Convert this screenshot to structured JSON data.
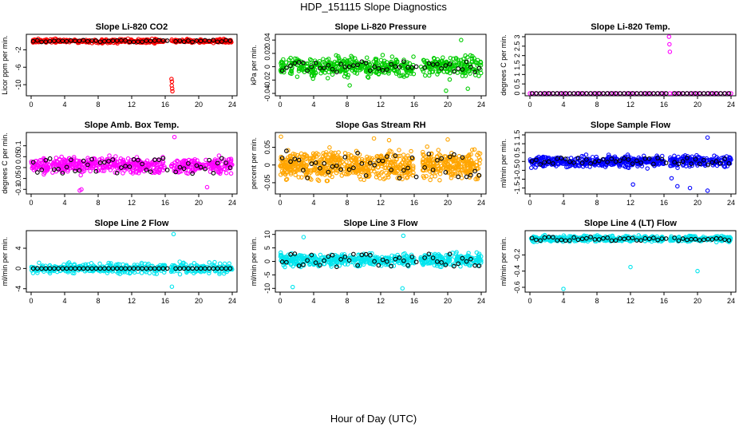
{
  "figure": {
    "title": "HDP_151115  Slope Diagnostics",
    "xlabel": "Hour of Day (UTC)"
  },
  "chart_data": [
    {
      "type": "scatter",
      "title": "Slope Li-820 CO2",
      "ylabel": "Licor ppm per min.",
      "xlim": [
        0,
        24
      ],
      "ylim": [
        -12,
        1
      ],
      "xticks": [
        0,
        4,
        8,
        12,
        16,
        20,
        24
      ],
      "yticks": [
        -2,
        -6,
        -10
      ],
      "color": "#ff0000",
      "series": [
        {
          "name": "raw",
          "pattern": "band",
          "segments": [
            [
              0,
              16
            ],
            [
              16.7,
              24
            ]
          ],
          "center": 0,
          "spread": 0.6,
          "count": 420
        },
        {
          "name": "raw outliers",
          "points": [
            [
              16.75,
              -8.7
            ],
            [
              16.8,
              -9.3
            ],
            [
              16.78,
              -10.2
            ],
            [
              16.83,
              -10.9
            ],
            [
              16.86,
              -11.5
            ]
          ]
        },
        {
          "name": "hourly mean",
          "color": "#000000",
          "pattern": "means",
          "center": 0,
          "spread": 0.2
        }
      ]
    },
    {
      "type": "scatter",
      "title": "Slope Li-820 Pressure",
      "ylabel": "kPa per min.",
      "xlim": [
        0,
        24
      ],
      "ylim": [
        -0.04,
        0.045
      ],
      "xticks": [
        0,
        4,
        8,
        12,
        16,
        20,
        24
      ],
      "yticks": [
        -0.04,
        -0.02,
        0.0,
        0.02,
        0.04
      ],
      "color": "#00cc00",
      "series": [
        {
          "name": "raw",
          "pattern": "band",
          "segments": [
            [
              0,
              16
            ],
            [
              16.7,
              24
            ]
          ],
          "center": 0.0,
          "spread": 0.02,
          "count": 520
        },
        {
          "name": "raw outliers",
          "points": [
            [
              21.6,
              0.04
            ],
            [
              22.4,
              -0.033
            ],
            [
              19.8,
              -0.036
            ],
            [
              8.3,
              -0.028
            ]
          ]
        },
        {
          "name": "hourly mean",
          "color": "#000000",
          "pattern": "means",
          "center": 0.0,
          "spread": 0.008
        }
      ]
    },
    {
      "type": "scatter",
      "title": "Slope Li-820 Temp.",
      "ylabel": "degrees C per min.",
      "xlim": [
        0,
        24
      ],
      "ylim": [
        0,
        3.0
      ],
      "xticks": [
        0,
        4,
        8,
        12,
        16,
        20,
        24
      ],
      "yticks": [
        0.0,
        0.5,
        1.0,
        1.5,
        2.0,
        2.5,
        3.0
      ],
      "color": "#ff00ff",
      "series": [
        {
          "name": "raw",
          "pattern": "flat",
          "segments": [
            [
              0,
              16
            ],
            [
              16.7,
              24
            ]
          ],
          "center": 0.0,
          "count": 60
        },
        {
          "name": "raw outliers",
          "points": [
            [
              16.6,
              3.0
            ],
            [
              16.65,
              2.6
            ],
            [
              16.7,
              2.2
            ]
          ]
        },
        {
          "name": "hourly mean",
          "color": "#000000",
          "pattern": "flatmeans",
          "center": 0.0
        }
      ]
    },
    {
      "type": "scatter",
      "title": "Slope Amb. Box Temp.",
      "ylabel": "degrees C per min.",
      "xlim": [
        0,
        24
      ],
      "ylim": [
        -0.11,
        0.15
      ],
      "xticks": [
        0,
        4,
        8,
        12,
        16,
        20,
        24
      ],
      "yticks": [
        -0.1,
        -0.05,
        0.0,
        0.05,
        0.1
      ],
      "color": "#ff00ff",
      "series": [
        {
          "name": "raw",
          "pattern": "band",
          "segments": [
            [
              0,
              16
            ],
            [
              16.7,
              24
            ]
          ],
          "center": 0.01,
          "spread": 0.05,
          "count": 560
        },
        {
          "name": "raw outliers",
          "points": [
            [
              17.1,
              0.14
            ],
            [
              5.8,
              -0.105
            ],
            [
              6.0,
              -0.1
            ],
            [
              21.0,
              -0.09
            ]
          ]
        },
        {
          "name": "hourly mean",
          "color": "#000000",
          "pattern": "means",
          "center": 0.01,
          "spread": 0.04
        }
      ]
    },
    {
      "type": "scatter",
      "title": "Slope Gas Stream RH",
      "ylabel": "percent per min.",
      "xlim": [
        0,
        24
      ],
      "ylim": [
        -0.075,
        0.085
      ],
      "xticks": [
        0,
        4,
        8,
        12,
        16,
        20,
        24
      ],
      "yticks": [
        -0.05,
        0.0,
        0.05
      ],
      "color": "#ffa500",
      "series": [
        {
          "name": "raw",
          "pattern": "band",
          "segments": [
            [
              0,
              16
            ],
            [
              17.0,
              24
            ]
          ],
          "center": 0.0,
          "spread": 0.055,
          "count": 800
        },
        {
          "name": "raw outliers",
          "points": [
            [
              0.1,
              0.08
            ],
            [
              11.2,
              0.075
            ],
            [
              13.0,
              0.07
            ],
            [
              20.0,
              0.072
            ]
          ]
        },
        {
          "name": "hourly mean",
          "color": "#000000",
          "pattern": "means",
          "center": 0.0,
          "spread": 0.04
        }
      ]
    },
    {
      "type": "scatter",
      "title": "Slope Sample Flow",
      "ylabel": "ml/min per min.",
      "xlim": [
        0,
        24
      ],
      "ylim": [
        -1.7,
        1.5
      ],
      "xticks": [
        0,
        4,
        8,
        12,
        16,
        20,
        24
      ],
      "yticks": [
        -1.5,
        -1.0,
        -0.5,
        0.0,
        0.5,
        1.0,
        1.5
      ],
      "color": "#0000ff",
      "series": [
        {
          "name": "raw",
          "pattern": "band",
          "segments": [
            [
              0,
              16
            ],
            [
              16.7,
              24
            ]
          ],
          "center": 0.0,
          "spread": 0.45,
          "count": 560
        },
        {
          "name": "raw outliers",
          "points": [
            [
              21.2,
              1.35
            ],
            [
              12.3,
              -1.3
            ],
            [
              17.6,
              -1.4
            ],
            [
              19.1,
              -1.5
            ],
            [
              21.2,
              -1.65
            ],
            [
              16.9,
              -0.95
            ]
          ]
        },
        {
          "name": "hourly mean",
          "color": "#000000",
          "pattern": "means",
          "center": 0.0,
          "spread": 0.2
        }
      ]
    },
    {
      "type": "scatter",
      "title": "Slope Line 2 Flow",
      "ylabel": "ml/min per min.",
      "xlim": [
        0,
        24
      ],
      "ylim": [
        -4.2,
        7
      ],
      "xticks": [
        0,
        4,
        8,
        12,
        16,
        20,
        24
      ],
      "yticks": [
        -4,
        0,
        4
      ],
      "color": "#00e5ee",
      "series": [
        {
          "name": "raw",
          "pattern": "band",
          "segments": [
            [
              0,
              16
            ],
            [
              16.7,
              24
            ]
          ],
          "center": 0.0,
          "spread": 1.4,
          "count": 420
        },
        {
          "name": "raw outliers",
          "points": [
            [
              17.0,
              6.8
            ],
            [
              16.8,
              -3.6
            ]
          ]
        },
        {
          "name": "hourly mean",
          "color": "#000000",
          "pattern": "flatmeans",
          "center": 0.0
        }
      ]
    },
    {
      "type": "scatter",
      "title": "Slope Line 3 Flow",
      "ylabel": "ml/min per min.",
      "xlim": [
        0,
        24
      ],
      "ylim": [
        -10.5,
        10.5
      ],
      "xticks": [
        0,
        4,
        8,
        12,
        16,
        20,
        24
      ],
      "yticks": [
        -10,
        -5,
        0,
        5,
        10
      ],
      "color": "#00e5ee",
      "series": [
        {
          "name": "raw",
          "pattern": "band",
          "segments": [
            [
              0,
              16
            ],
            [
              16.7,
              24
            ]
          ],
          "center": 0.5,
          "spread": 3.5,
          "count": 560
        },
        {
          "name": "raw outliers",
          "points": [
            [
              2.8,
              9.0
            ],
            [
              14.7,
              9.5
            ],
            [
              14.6,
              -10.0
            ],
            [
              1.5,
              -9.5
            ]
          ]
        },
        {
          "name": "hourly mean",
          "color": "#000000",
          "pattern": "means",
          "center": 0.5,
          "spread": 2.5
        }
      ]
    },
    {
      "type": "scatter",
      "title": "Slope Line 4 (LT) Flow",
      "ylabel": "ml/min per min.",
      "xlim": [
        0,
        24
      ],
      "ylim": [
        -0.63,
        0.07
      ],
      "xticks": [
        0,
        4,
        8,
        12,
        16,
        20,
        24
      ],
      "yticks": [
        -0.6,
        -0.4,
        -0.2
      ],
      "color": "#00e5ee",
      "series": [
        {
          "name": "raw",
          "pattern": "band",
          "segments": [
            [
              0,
              16
            ],
            [
              16.7,
              24
            ]
          ],
          "center": 0.0,
          "spread": 0.05,
          "count": 460
        },
        {
          "name": "raw outliers",
          "points": [
            [
              4.0,
              -0.62
            ],
            [
              12.0,
              -0.35
            ],
            [
              20.0,
              -0.4
            ]
          ]
        },
        {
          "name": "hourly mean",
          "color": "#000000",
          "pattern": "means",
          "center": 0.0,
          "spread": 0.025
        }
      ]
    }
  ]
}
